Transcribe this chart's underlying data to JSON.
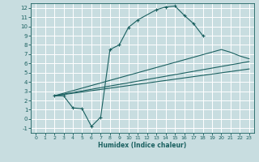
{
  "xlabel": "Humidex (Indice chaleur)",
  "background_color": "#c8dde0",
  "grid_color": "#ffffff",
  "line_color": "#1a6060",
  "xlim": [
    -0.5,
    23.5
  ],
  "ylim": [
    -1.5,
    12.5
  ],
  "xticks": [
    0,
    1,
    2,
    3,
    4,
    5,
    6,
    7,
    8,
    9,
    10,
    11,
    12,
    13,
    14,
    15,
    16,
    17,
    18,
    19,
    20,
    21,
    22,
    23
  ],
  "yticks": [
    -1,
    0,
    1,
    2,
    3,
    4,
    5,
    6,
    7,
    8,
    9,
    10,
    11,
    12
  ],
  "line1_x": [
    2,
    3,
    4,
    5,
    6,
    7,
    8,
    9,
    10,
    11,
    13,
    14,
    15,
    16,
    17,
    18
  ],
  "line1_y": [
    2.5,
    2.5,
    1.2,
    1.1,
    -0.8,
    0.2,
    7.5,
    8.0,
    9.9,
    10.7,
    11.8,
    12.1,
    12.2,
    11.2,
    10.3,
    9.0
  ],
  "line2_x": [
    2,
    23
  ],
  "line2_y": [
    2.5,
    6.2
  ],
  "line3_x": [
    2,
    23
  ],
  "line3_y": [
    2.5,
    5.4
  ],
  "line4_x": [
    2,
    20,
    21,
    22,
    23
  ],
  "line4_y": [
    2.5,
    7.5,
    7.2,
    6.8,
    6.5
  ]
}
